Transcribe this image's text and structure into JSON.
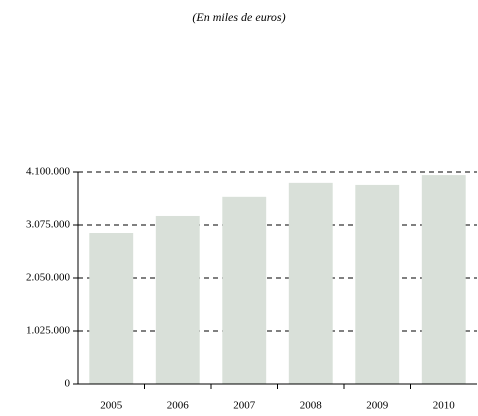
{
  "chart_data": {
    "type": "bar",
    "subtitle": "(En miles de euros)",
    "categories": [
      "2005",
      "2006",
      "2007",
      "2008",
      "2009",
      "2010"
    ],
    "values": [
      2920000,
      3250000,
      3620000,
      3890000,
      3850000,
      4040000
    ],
    "color": "#d9e0d9",
    "ylim": [
      0,
      4100000
    ],
    "yticks": [
      0,
      {
        "value": 1025000,
        "label": "1.025.000"
      },
      {
        "value": 2050000,
        "label": "2.050.000"
      },
      {
        "value": 3075000,
        "label": "3.075.000"
      },
      {
        "value": 4100000,
        "label": "4.100.000"
      }
    ],
    "grid": true
  }
}
